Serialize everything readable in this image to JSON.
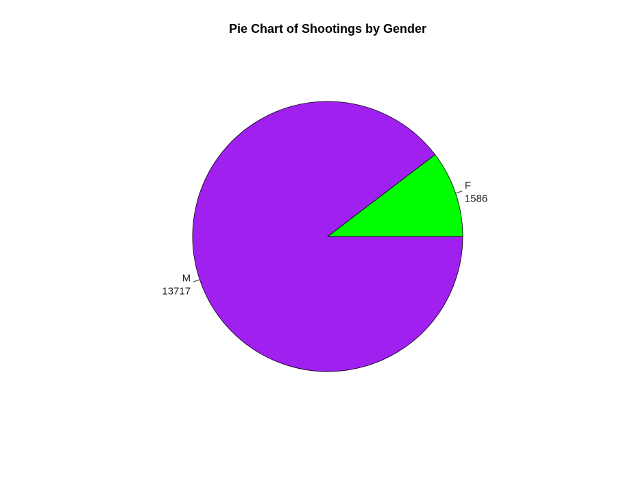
{
  "chart_data": {
    "type": "pie",
    "title": "Pie Chart of Shootings by Gender",
    "labels": [
      "F",
      "M"
    ],
    "values": [
      1586,
      13717
    ],
    "value_labels": [
      "1586",
      "13717"
    ],
    "colors": [
      "#00ff00",
      "#a020f0"
    ],
    "start_angle_deg": 0,
    "direction": "counterclockwise",
    "legend": "none"
  }
}
